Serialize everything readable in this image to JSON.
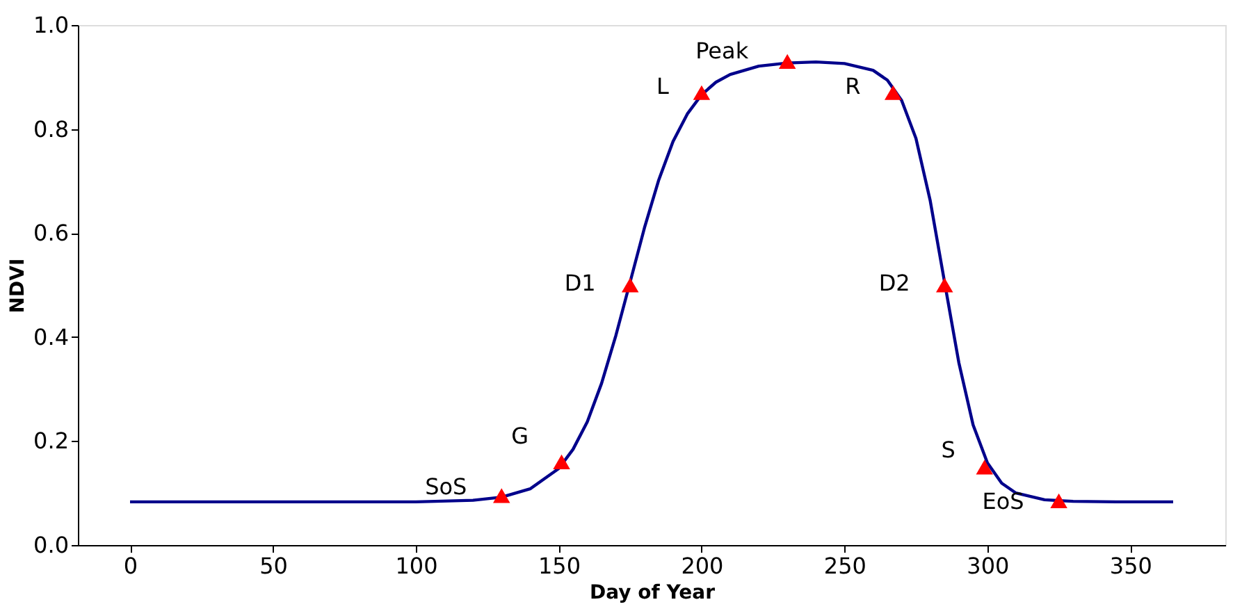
{
  "chart_data": {
    "type": "line",
    "xlabel": "Day of Year",
    "ylabel": "NDVI",
    "xlim": [
      -18.25,
      383.25
    ],
    "ylim": [
      0,
      1.0
    ],
    "xticks": [
      0,
      50,
      100,
      150,
      200,
      250,
      300,
      350
    ],
    "yticks": [
      {
        "value": 0,
        "label": "0.0"
      },
      0.2,
      0.4,
      0.6,
      0.8,
      {
        "value": 1.0,
        "label": "1.0"
      }
    ],
    "grid": false,
    "series": [
      {
        "color": "#00008b",
        "marker": "none",
        "line_style": "solid",
        "x": [
          0,
          50,
          100,
          120,
          130,
          140,
          150,
          155,
          160,
          165,
          170,
          175,
          180,
          185,
          190,
          195,
          200,
          205,
          210,
          220,
          230,
          240,
          250,
          260,
          265,
          270,
          275,
          280,
          285,
          290,
          295,
          300,
          305,
          310,
          320,
          330,
          345,
          365
        ],
        "values": [
          0.083,
          0.083,
          0.083,
          0.086,
          0.092,
          0.108,
          0.147,
          0.184,
          0.237,
          0.311,
          0.403,
          0.506,
          0.61,
          0.702,
          0.776,
          0.829,
          0.866,
          0.89,
          0.905,
          0.921,
          0.927,
          0.929,
          0.926,
          0.913,
          0.894,
          0.855,
          0.782,
          0.662,
          0.506,
          0.351,
          0.231,
          0.158,
          0.119,
          0.1,
          0.087,
          0.084,
          0.083,
          0.083
        ]
      },
      {
        "type": "scatter",
        "color": "#ff0000",
        "marker": "triangle",
        "x": [
          130,
          151,
          175,
          200,
          230,
          267,
          285,
          299,
          325
        ],
        "values": [
          0.095,
          0.16,
          0.5,
          0.87,
          0.93,
          0.87,
          0.5,
          0.15,
          0.085
        ]
      }
    ],
    "annotations": [
      {
        "text": "SoS",
        "x": 130,
        "y": 0.095
      },
      {
        "text": "G",
        "x": 151,
        "y": 0.16
      },
      {
        "text": "D1",
        "x": 175,
        "y": 0.5
      },
      {
        "text": "L",
        "x": 200,
        "y": 0.87
      },
      {
        "text": "Peak",
        "x": 230,
        "y": 0.93
      },
      {
        "text": "R",
        "x": 267,
        "y": 0.87
      },
      {
        "text": "D2",
        "x": 285,
        "y": 0.5
      },
      {
        "text": "S",
        "x": 299,
        "y": 0.15
      },
      {
        "text": "EoS",
        "x": 325,
        "y": 0.085
      }
    ]
  }
}
